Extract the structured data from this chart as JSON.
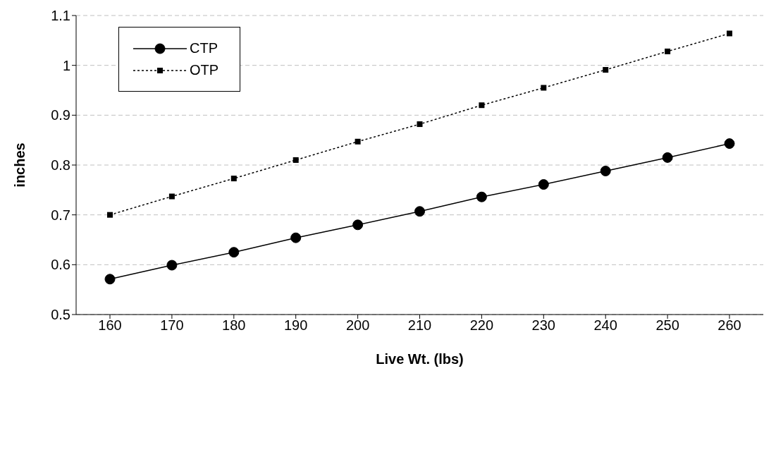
{
  "chart_data": {
    "type": "line",
    "xlabel": "Live Wt. (lbs)",
    "ylabel": "inches",
    "categories": [
      "160",
      "170",
      "180",
      "190",
      "200",
      "210",
      "220",
      "230",
      "240",
      "250",
      "260"
    ],
    "series": [
      {
        "name": "CTP",
        "color": "#000000",
        "marker": "circle",
        "line_style": "solid",
        "values": [
          0.571,
          0.599,
          0.625,
          0.654,
          0.68,
          0.707,
          0.736,
          0.761,
          0.788,
          0.815,
          0.843
        ]
      },
      {
        "name": "OTP",
        "color": "#000000",
        "marker": "square",
        "line_style": "dotted",
        "values": [
          0.7,
          0.737,
          0.773,
          0.81,
          0.847,
          0.882,
          0.92,
          0.955,
          0.991,
          1.028,
          1.064
        ]
      }
    ],
    "ylim": [
      0.5,
      1.1
    ],
    "yticks": [
      0.5,
      0.6,
      0.7,
      0.8,
      0.9,
      1,
      1.1
    ],
    "grid": "y",
    "legend": "top left"
  }
}
